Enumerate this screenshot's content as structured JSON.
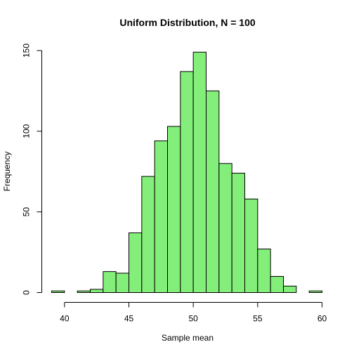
{
  "chart_data": {
    "type": "bar",
    "title": "Uniform Distribution, N =  100",
    "xlabel": "Sample mean",
    "ylabel": "Frequency",
    "bar_color": "#83EF7A",
    "edge_color": "#000000",
    "bin_width": 1,
    "bins": [
      {
        "start": 39,
        "end": 40,
        "count": 1
      },
      {
        "start": 40,
        "end": 41,
        "count": 0
      },
      {
        "start": 41,
        "end": 42,
        "count": 1
      },
      {
        "start": 42,
        "end": 43,
        "count": 2
      },
      {
        "start": 43,
        "end": 44,
        "count": 13
      },
      {
        "start": 44,
        "end": 45,
        "count": 12
      },
      {
        "start": 45,
        "end": 46,
        "count": 37
      },
      {
        "start": 46,
        "end": 47,
        "count": 72
      },
      {
        "start": 47,
        "end": 48,
        "count": 94
      },
      {
        "start": 48,
        "end": 49,
        "count": 103
      },
      {
        "start": 49,
        "end": 50,
        "count": 137
      },
      {
        "start": 50,
        "end": 51,
        "count": 149
      },
      {
        "start": 51,
        "end": 52,
        "count": 125
      },
      {
        "start": 52,
        "end": 53,
        "count": 80
      },
      {
        "start": 53,
        "end": 54,
        "count": 74
      },
      {
        "start": 54,
        "end": 55,
        "count": 58
      },
      {
        "start": 55,
        "end": 56,
        "count": 27
      },
      {
        "start": 56,
        "end": 57,
        "count": 10
      },
      {
        "start": 57,
        "end": 58,
        "count": 4
      },
      {
        "start": 58,
        "end": 59,
        "count": 0
      },
      {
        "start": 59,
        "end": 60,
        "count": 1
      }
    ],
    "xlim": [
      39,
      60
    ],
    "ylim": [
      0,
      150
    ],
    "x_ticks": [
      40,
      45,
      50,
      55,
      60
    ],
    "y_ticks": [
      0,
      50,
      100,
      150
    ],
    "grid": false,
    "legend": "none"
  }
}
